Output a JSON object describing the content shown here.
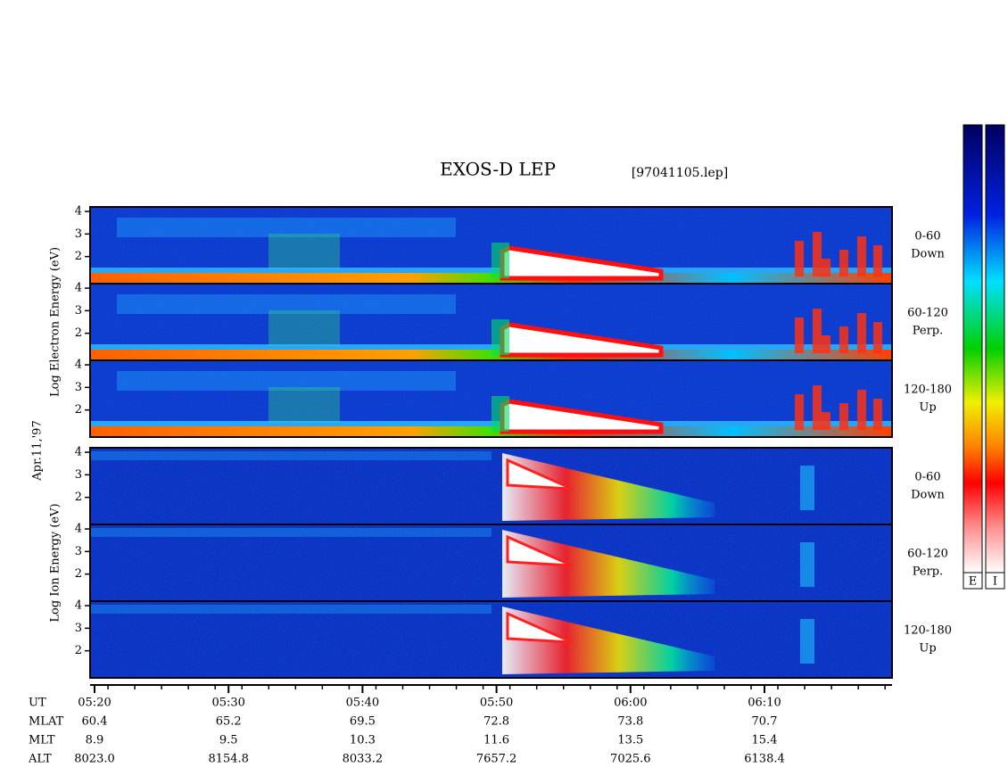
{
  "chart_data": {
    "type": "spectrogram",
    "title": "EXOS-D LEP",
    "file": "[97041105.lep]",
    "date": "Apr.11,'97",
    "ylim": [
      0.8,
      4.2
    ],
    "groups": [
      {
        "ylabel": "Log Electron Energy (eV)",
        "kind": "electron",
        "panels": [
          {
            "label": [
              "0-60",
              "Down"
            ],
            "yticks": [
              2,
              3,
              4
            ]
          },
          {
            "label": [
              "60-120",
              "Perp."
            ],
            "yticks": [
              2,
              3,
              4
            ]
          },
          {
            "label": [
              "120-180",
              "Up"
            ],
            "yticks": [
              2,
              3,
              4
            ]
          }
        ]
      },
      {
        "ylabel": "Log Ion Energy (eV)",
        "kind": "ion",
        "panels": [
          {
            "label": [
              "0-60",
              "Down"
            ],
            "yticks": [
              2,
              3,
              4
            ]
          },
          {
            "label": [
              "60-120",
              "Perp."
            ],
            "yticks": [
              2,
              3,
              4
            ]
          },
          {
            "label": [
              "120-180",
              "Up"
            ],
            "yticks": [
              2,
              3,
              4
            ]
          }
        ]
      }
    ],
    "xticks": [
      "05:20",
      "05:30",
      "05:40",
      "05:50",
      "06:00",
      "06:10"
    ],
    "ephemeris": [
      {
        "name": "UT"
      },
      {
        "name": "MLAT",
        "values": [
          "60.4",
          "65.2",
          "69.5",
          "72.8",
          "73.8",
          "70.7"
        ]
      },
      {
        "name": "MLT",
        "values": [
          "8.9",
          "9.5",
          "10.3",
          "11.6",
          "13.5",
          "15.4"
        ]
      },
      {
        "name": "ALT",
        "values": [
          "8023.0",
          "8154.8",
          "8033.2",
          "7657.2",
          "7025.6",
          "6138.4"
        ]
      }
    ],
    "colorbars": [
      "E",
      "I"
    ]
  }
}
